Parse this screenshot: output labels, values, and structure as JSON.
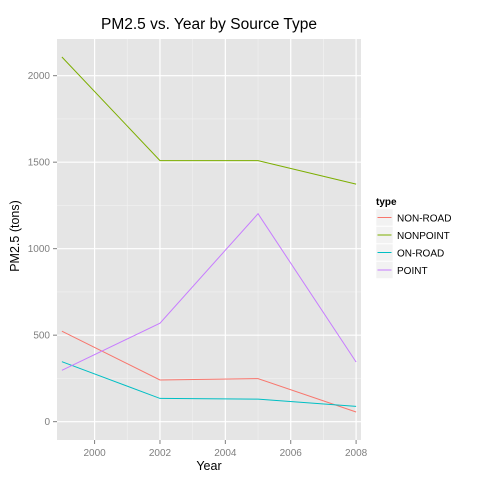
{
  "chart_data": {
    "type": "line",
    "title": "PM2.5 vs. Year by Source Type",
    "xlabel": "Year",
    "ylabel": "PM2.5 (tons)",
    "x": [
      1999,
      2002,
      2005,
      2008
    ],
    "xlim": [
      1998.85,
      2008.15
    ],
    "ylim": [
      -106,
      2212
    ],
    "x_ticks": [
      2000,
      2002,
      2004,
      2006,
      2008
    ],
    "y_ticks": [
      0,
      500,
      1000,
      1500,
      2000
    ],
    "grid": true,
    "legend": {
      "title": "type",
      "position": "right"
    },
    "series": [
      {
        "name": "NON-ROAD",
        "color": "#F8766D",
        "values": [
          522.9,
          240.8,
          248.9,
          55.8
        ]
      },
      {
        "name": "NONPOINT",
        "color": "#7CAE00",
        "values": [
          2108,
          1509,
          1509,
          1373
        ]
      },
      {
        "name": "ON-ROAD",
        "color": "#00BFC4",
        "values": [
          346.8,
          134.3,
          130.4,
          88.3
        ]
      },
      {
        "name": "POINT",
        "color": "#C77CFF",
        "values": [
          296.8,
          569.3,
          1202,
          344.98
        ]
      }
    ]
  }
}
